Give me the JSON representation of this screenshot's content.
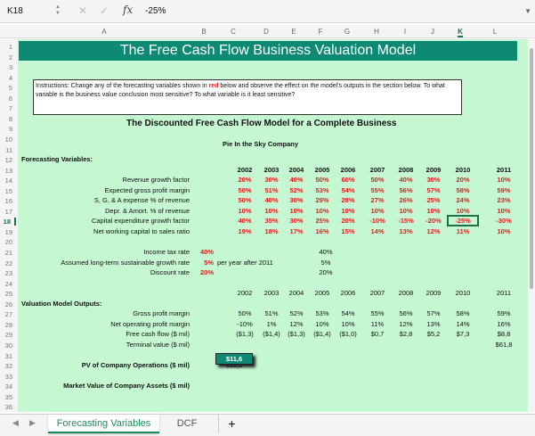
{
  "formula_bar": {
    "name_box": "K18",
    "value": "-25%",
    "fx": "fx",
    "cancel": "✕",
    "enter": "✓"
  },
  "columns": [
    "A",
    "B",
    "C",
    "D",
    "E",
    "F",
    "G",
    "H",
    "I",
    "J",
    "K",
    "L"
  ],
  "selected_column": "K",
  "selected_row": 18,
  "title": "The Free Cash Flow Business Valuation Model",
  "instructions": {
    "part1": "Instructions:  Change any of the forecasting variables shown in ",
    "red_word": "red",
    "part2": " below and observe the effect on the model's outputs in the section below.  To what variable is the business value conclusion most sensitive?  To what variable is it least sensitive?"
  },
  "subtitle": "The Discounted Free Cash Flow Model for a Complete Business",
  "company": "Pie In the Sky Company",
  "forecasting": {
    "heading": "Forecasting Variables:",
    "years": [
      "2002",
      "2003",
      "2004",
      "2005",
      "2006",
      "2007",
      "2008",
      "2009",
      "2010",
      "2011"
    ],
    "rows": [
      {
        "label": "Revenue growth factor",
        "values": [
          "20%",
          "30%",
          "40%",
          "50%",
          "60%",
          "50%",
          "40%",
          "30%",
          "20%",
          "10%"
        ]
      },
      {
        "label": "Expected gross profit margin",
        "values": [
          "50%",
          "51%",
          "52%",
          "53%",
          "54%",
          "55%",
          "56%",
          "57%",
          "58%",
          "59%"
        ]
      },
      {
        "label": "S, G, & A expense % of revenue",
        "values": [
          "50%",
          "40%",
          "30%",
          "29%",
          "28%",
          "27%",
          "26%",
          "25%",
          "24%",
          "23%"
        ]
      },
      {
        "label": "Depr. & Amort. % of revenue",
        "values": [
          "10%",
          "10%",
          "10%",
          "10%",
          "10%",
          "10%",
          "10%",
          "10%",
          "10%",
          "10%"
        ]
      },
      {
        "label": "Capital expenditure growth factor",
        "values": [
          "40%",
          "35%",
          "30%",
          "25%",
          "20%",
          "-10%",
          "-15%",
          "-20%",
          "-25%",
          "-30%"
        ]
      },
      {
        "label": "Net working capital to sales ratio",
        "values": [
          "19%",
          "18%",
          "17%",
          "16%",
          "15%",
          "14%",
          "13%",
          "12%",
          "11%",
          "10%"
        ]
      }
    ]
  },
  "assumptions": [
    {
      "label": "Income tax rate",
      "input": "40%",
      "note": "",
      "echo": "40%"
    },
    {
      "label": "Assumed long-term sustainable growth rate",
      "input": "5%",
      "note": "per year after 2011",
      "echo": "5%"
    },
    {
      "label": "Discount rate",
      "input": "20%",
      "note": "",
      "echo": "20%"
    }
  ],
  "outputs": {
    "heading": "Valuation Model Outputs:",
    "years": [
      "2002",
      "2003",
      "2004",
      "2005",
      "2006",
      "2007",
      "2008",
      "2009",
      "2010",
      "2011"
    ],
    "rows": [
      {
        "label": "Gross profit margin",
        "values": [
          "50%",
          "51%",
          "52%",
          "53%",
          "54%",
          "55%",
          "56%",
          "57%",
          "58%",
          "59%"
        ]
      },
      {
        "label": "Net operating profit margin",
        "values": [
          "-10%",
          "1%",
          "12%",
          "10%",
          "10%",
          "11%",
          "12%",
          "13%",
          "14%",
          "16%"
        ]
      },
      {
        "label": "Free cash flow ($ mil)",
        "values": [
          "($1,3)",
          "($1,4)",
          "($1,3)",
          "($1,4)",
          "($1,0)",
          "$0,7",
          "$2,8",
          "$5,2",
          "$7,3",
          "$8,8"
        ]
      },
      {
        "label": "Terminal value ($ mil)",
        "values": [
          "",
          "",
          "",
          "",
          "",
          "",
          "",
          "",
          "",
          "$61,8"
        ]
      }
    ],
    "pv_label": "PV of Company Operations ($ mil)",
    "pv_value": "$11,1",
    "mv_label": "Market Value of Company Assets ($ mil)",
    "mv_value": "$11,6"
  },
  "tabs": [
    "Forecasting Variables",
    "DCF"
  ],
  "add_sheet": "+"
}
